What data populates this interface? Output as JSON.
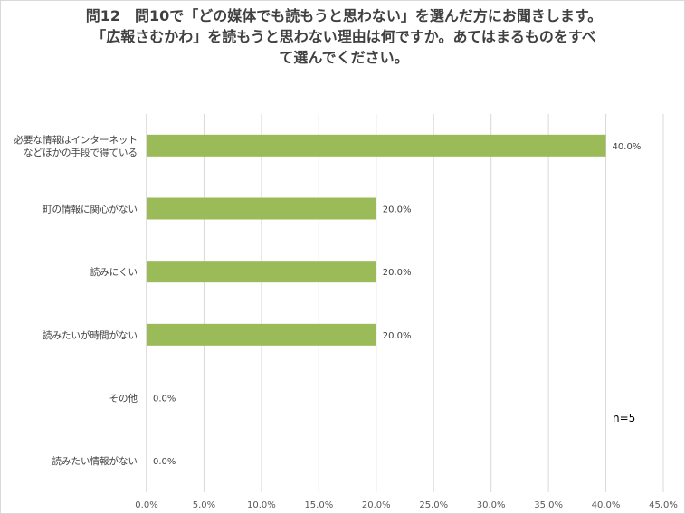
{
  "title_lines": [
    "問12　問10で「どの媒体でも読もうと思わない」を選んだ方にお聞きします。",
    "「広報さむかわ」を読もうと思わない理由は何ですか。あてはまるものをすべ",
    "て選んでください。"
  ],
  "chart_data": {
    "type": "bar",
    "orientation": "horizontal",
    "categories": [
      [
        "必要な情報はインターネット",
        "などほかの手段で得ている"
      ],
      [
        "町の情報に関心がない"
      ],
      [
        "読みにくい"
      ],
      [
        "読みたいが時間がない"
      ],
      [
        "その他"
      ],
      [
        "読みたい情報がない"
      ]
    ],
    "values": [
      40.0,
      20.0,
      20.0,
      20.0,
      0.0,
      0.0
    ],
    "data_labels": [
      "40.0%",
      "20.0%",
      "20.0%",
      "20.0%",
      "0.0%",
      "0.0%"
    ],
    "xlim": [
      0,
      45
    ],
    "xticks": [
      "0.0%",
      "5.0%",
      "10.0%",
      "15.0%",
      "20.0%",
      "25.0%",
      "30.0%",
      "35.0%",
      "40.0%",
      "45.0%"
    ],
    "grid": true,
    "bar_color": "#9bbb59",
    "note": "n=5"
  }
}
